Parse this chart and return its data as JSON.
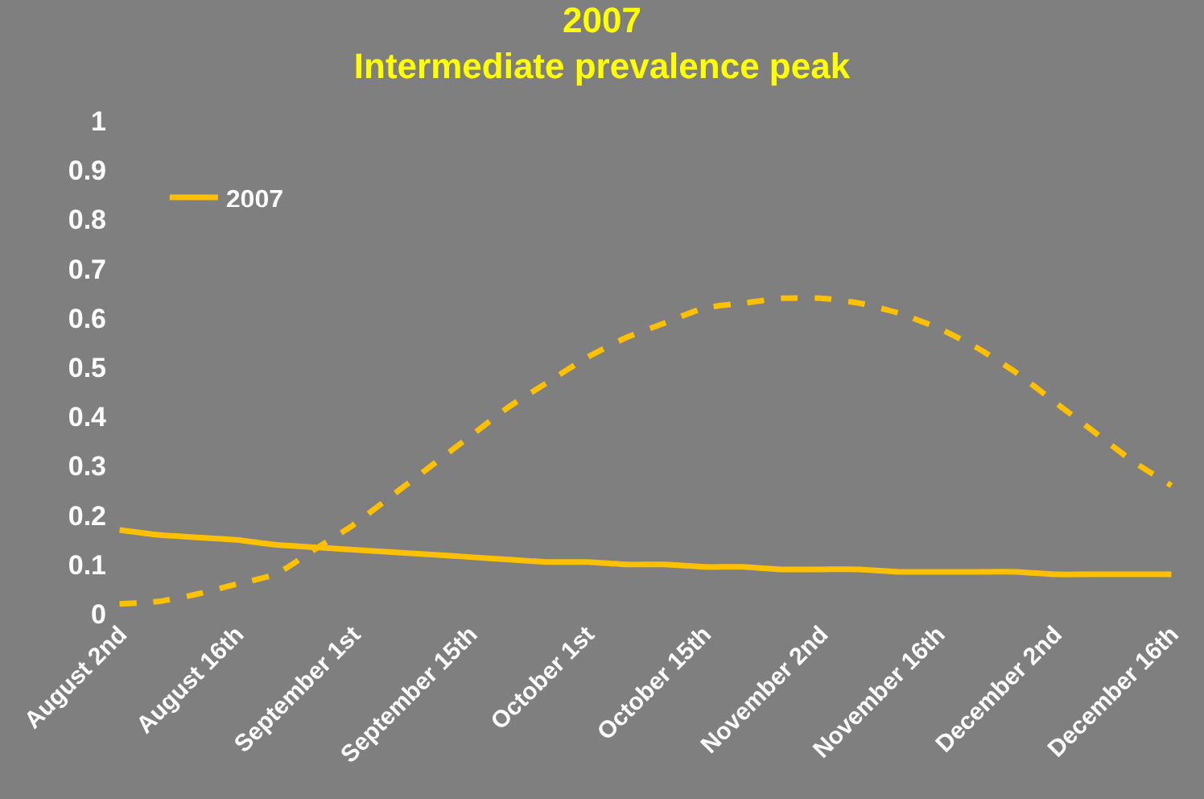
{
  "chart_data": {
    "type": "line",
    "title": "2007",
    "subtitle": "Intermediate prevalence peak",
    "categories": [
      "August 2nd",
      null,
      null,
      "August 16th",
      null,
      null,
      "September 1st",
      null,
      null,
      "September 15th",
      null,
      null,
      "October 1st",
      null,
      null,
      "October 15th",
      null,
      null,
      "November 2nd",
      null,
      null,
      "November 16th",
      null,
      null,
      "December 2nd",
      null,
      null,
      "December 16th"
    ],
    "series": [
      {
        "name": "2007",
        "color": "#ffc000",
        "line_style": "solid",
        "values": [
          0.17,
          0.16,
          0.155,
          0.15,
          0.14,
          0.135,
          0.13,
          0.125,
          0.12,
          0.115,
          0.11,
          0.105,
          0.105,
          0.1,
          0.1,
          0.095,
          0.095,
          0.09,
          0.09,
          0.09,
          0.085,
          0.085,
          0.085,
          0.085,
          0.08,
          0.08,
          0.08,
          0.08
        ]
      },
      {
        "color": "#ffc000",
        "line_style": "dashed",
        "values": [
          0.02,
          0.025,
          0.04,
          0.06,
          0.08,
          0.13,
          0.18,
          0.24,
          0.3,
          0.36,
          0.42,
          0.47,
          0.52,
          0.56,
          0.59,
          0.62,
          0.63,
          0.64,
          0.64,
          0.63,
          0.61,
          0.58,
          0.54,
          0.49,
          0.43,
          0.37,
          0.31,
          0.26
        ]
      }
    ],
    "ylim": [
      0,
      1
    ],
    "yticks": [
      0,
      0.1,
      0.2,
      0.3,
      0.4,
      0.5,
      0.6,
      0.7,
      0.8,
      0.9,
      1
    ],
    "grid": false,
    "legend": "top left",
    "marker": "none"
  }
}
